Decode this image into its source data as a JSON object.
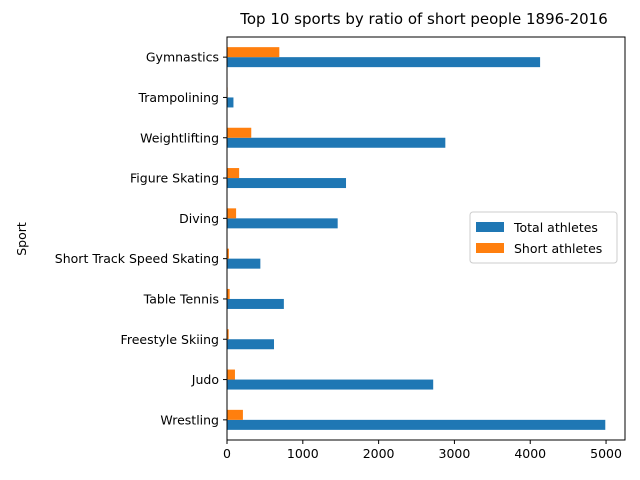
{
  "chart_data": {
    "type": "bar",
    "orientation": "horizontal",
    "title": "Top 10 sports by ratio of short people 1896-2016",
    "xlabel": "",
    "ylabel": "Sport",
    "categories": [
      "Gymnastics",
      "Trampolining",
      "Weightlifting",
      "Figure Skating",
      "Diving",
      "Short Track Speed Skating",
      "Table Tennis",
      "Freestyle Skiing",
      "Judo",
      "Wrestling"
    ],
    "series": [
      {
        "name": "Total athletes",
        "color": "#1f77b4",
        "values": [
          4130,
          85,
          2880,
          1570,
          1460,
          440,
          750,
          620,
          2720,
          4990
        ]
      },
      {
        "name": "Short athletes",
        "color": "#ff7f0e",
        "values": [
          690,
          8,
          320,
          160,
          120,
          25,
          35,
          22,
          105,
          210
        ]
      }
    ],
    "xlim": [
      0,
      5250
    ],
    "xticks": [
      0,
      1000,
      2000,
      3000,
      4000,
      5000
    ],
    "grid": false,
    "legend_position": "center-right"
  }
}
